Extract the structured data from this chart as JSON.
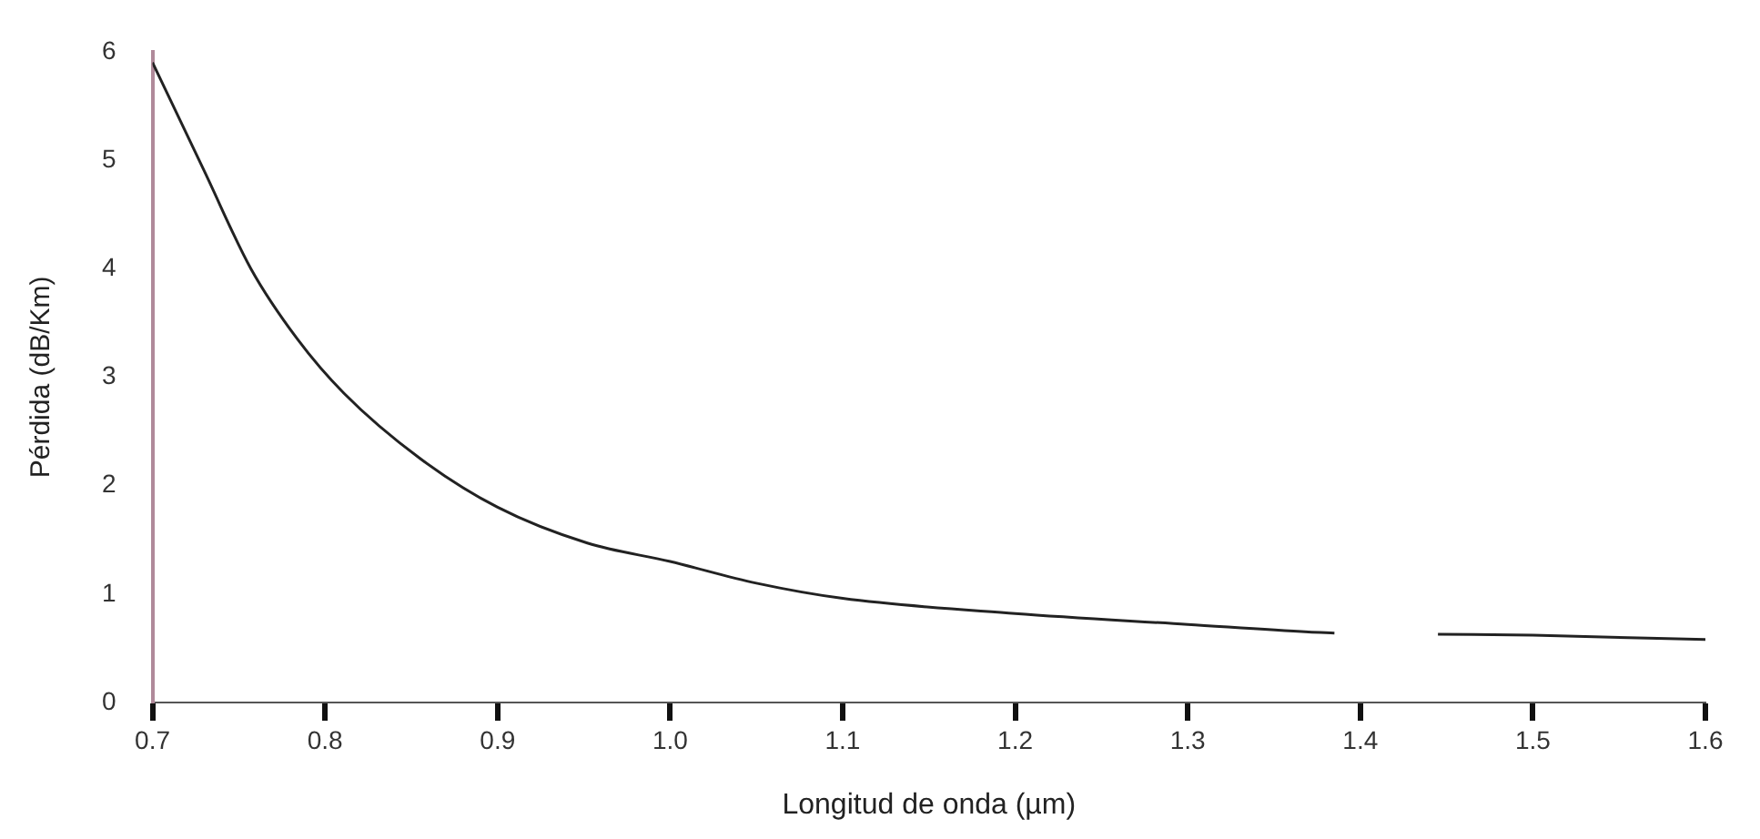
{
  "chart_data": {
    "type": "line",
    "xlabel": "Longitud de onda (µm)",
    "ylabel": "Pérdida (dB/Km)",
    "xlim": [
      0.7,
      1.6
    ],
    "xticks": [
      0.7,
      0.8,
      0.9,
      {
        "value": 1.0,
        "label": "1.0"
      },
      1.1,
      1.2,
      1.3,
      1.4,
      1.5,
      1.6
    ],
    "ylim": [
      0,
      6
    ],
    "yticks": [
      0,
      1,
      2,
      3,
      4,
      5,
      6
    ],
    "grid": false,
    "legend": false,
    "marker": "none",
    "series": [
      {
        "color": "#222222",
        "x": [
          0.7,
          0.73,
          0.757,
          0.784,
          0.811,
          0.855,
          0.9,
          0.952,
          1.0,
          1.05,
          1.1,
          1.2,
          1.3,
          1.37,
          1.385,
          1.415,
          1.445,
          1.5,
          1.6
        ],
        "values": [
          5.9,
          4.9,
          4.0,
          3.35,
          2.85,
          2.25,
          1.8,
          1.47,
          1.3,
          1.1,
          0.96,
          0.82,
          0.72,
          0.65,
          0.64,
          null,
          0.63,
          0.62,
          0.58
        ]
      }
    ]
  }
}
